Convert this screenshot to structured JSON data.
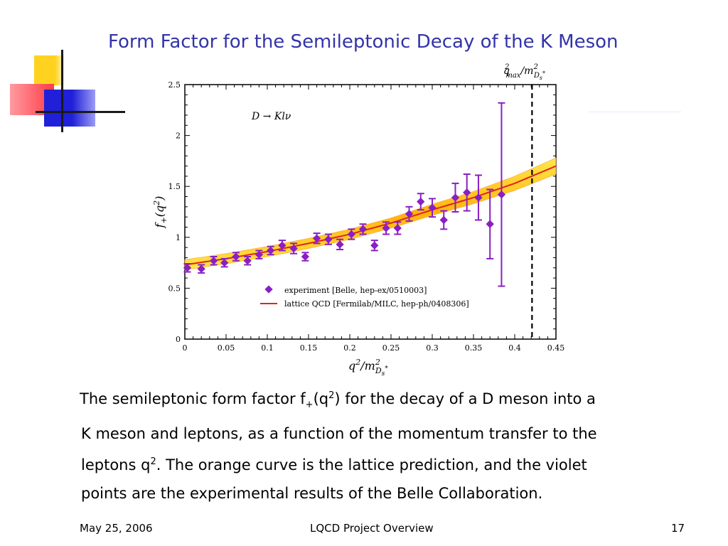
{
  "slide": {
    "title": "Form Factor for the Semileptonic Decay of the K Meson",
    "caption_lines": [
      [
        "The semileptonic form factor f",
        "+",
        "(q",
        "2",
        ") for the decay of a D meson into a"
      ],
      [
        "K meson and leptons, as a function of the momentum transfer to the"
      ],
      [
        "leptons q",
        "2",
        ".  The orange curve is the lattice prediction, and the violet"
      ],
      [
        "points are the experimental results of the Belle Collaboration."
      ]
    ]
  },
  "footer": {
    "date": "May 25, 2006",
    "title": "LQCD Project Overview",
    "page": "17"
  },
  "colors": {
    "title": "#3333aa",
    "experiment": "#8a1fc4",
    "lattice_line": "#e0241b",
    "lattice_band": "#ffd400",
    "lattice_band_edge": "#ff9a2e"
  },
  "chart_data": {
    "type": "scatter",
    "annotation": "D → Klν",
    "xlabel": "q²/m²_{D*s}",
    "ylabel": "f₊(q²)",
    "top_label": "q²max/m²_{D*s}",
    "xlim": [
      0,
      0.45
    ],
    "ylim": [
      0,
      2.5
    ],
    "x_ticks": [
      "0",
      "0.05",
      "0.1",
      "0.15",
      "0.2",
      "0.25",
      "0.3",
      "0.35",
      "0.4",
      "0.45"
    ],
    "y_ticks": [
      "0",
      "0.5",
      "1",
      "1.5",
      "2",
      "2.5"
    ],
    "grid": false,
    "legend_position": "bottom-left",
    "vertical_marker_x": 0.421,
    "series": [
      {
        "name": "experiment [Belle, hep-ex/0510003]",
        "kind": "points_with_errorbars",
        "points": [
          {
            "x": 0.003,
            "y": 0.7,
            "err": 0.04
          },
          {
            "x": 0.02,
            "y": 0.69,
            "err": 0.04
          },
          {
            "x": 0.035,
            "y": 0.77,
            "err": 0.04
          },
          {
            "x": 0.048,
            "y": 0.75,
            "err": 0.04
          },
          {
            "x": 0.062,
            "y": 0.81,
            "err": 0.04
          },
          {
            "x": 0.076,
            "y": 0.77,
            "err": 0.04
          },
          {
            "x": 0.09,
            "y": 0.83,
            "err": 0.04
          },
          {
            "x": 0.104,
            "y": 0.87,
            "err": 0.04
          },
          {
            "x": 0.118,
            "y": 0.92,
            "err": 0.05
          },
          {
            "x": 0.132,
            "y": 0.89,
            "err": 0.05
          },
          {
            "x": 0.146,
            "y": 0.81,
            "err": 0.04
          },
          {
            "x": 0.16,
            "y": 0.99,
            "err": 0.05
          },
          {
            "x": 0.174,
            "y": 0.98,
            "err": 0.05
          },
          {
            "x": 0.188,
            "y": 0.93,
            "err": 0.05
          },
          {
            "x": 0.202,
            "y": 1.03,
            "err": 0.05
          },
          {
            "x": 0.216,
            "y": 1.08,
            "err": 0.05
          },
          {
            "x": 0.23,
            "y": 0.92,
            "err": 0.05
          },
          {
            "x": 0.244,
            "y": 1.09,
            "err": 0.06
          },
          {
            "x": 0.258,
            "y": 1.09,
            "err": 0.06
          },
          {
            "x": 0.272,
            "y": 1.23,
            "err": 0.07
          },
          {
            "x": 0.286,
            "y": 1.35,
            "err": 0.08
          },
          {
            "x": 0.3,
            "y": 1.29,
            "err": 0.09
          },
          {
            "x": 0.314,
            "y": 1.17,
            "err": 0.09
          },
          {
            "x": 0.328,
            "y": 1.39,
            "err": 0.14
          },
          {
            "x": 0.342,
            "y": 1.44,
            "err": 0.18
          },
          {
            "x": 0.356,
            "y": 1.39,
            "err": 0.22
          },
          {
            "x": 0.37,
            "y": 1.13,
            "err": 0.34
          },
          {
            "x": 0.384,
            "y": 1.42,
            "err": 0.9
          }
        ]
      },
      {
        "name": "lattice QCD [Fermilab/MILC, hep-ph/0408306]",
        "kind": "curve_with_band",
        "x": [
          0,
          0.05,
          0.1,
          0.15,
          0.2,
          0.25,
          0.3,
          0.35,
          0.4,
          0.45
        ],
        "y": [
          0.73,
          0.79,
          0.86,
          0.94,
          1.03,
          1.14,
          1.27,
          1.39,
          1.53,
          1.7
        ],
        "band_halfwidth": [
          0.05,
          0.05,
          0.05,
          0.05,
          0.05,
          0.05,
          0.055,
          0.06,
          0.07,
          0.08
        ]
      }
    ]
  }
}
